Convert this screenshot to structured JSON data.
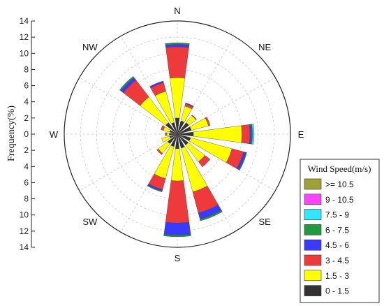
{
  "chart_data": {
    "type": "wind-rose",
    "title": "",
    "ylabel": "Frequency(%)",
    "r_max": 14,
    "r_ticks_up": [
      14,
      12,
      10,
      8,
      6,
      4,
      2,
      0
    ],
    "r_ticks_down": [
      2,
      4,
      6,
      8,
      10,
      12,
      14
    ],
    "direction_labels": [
      {
        "label": "N",
        "angle": 0
      },
      {
        "label": "NE",
        "angle": 45
      },
      {
        "label": "E",
        "angle": 90
      },
      {
        "label": "SE",
        "angle": 135
      },
      {
        "label": "S",
        "angle": 180
      },
      {
        "label": "SW",
        "angle": 225
      },
      {
        "label": "W",
        "angle": 270
      },
      {
        "label": "NW",
        "angle": 315
      }
    ],
    "legend": {
      "title": "Wind Speed(m/s)",
      "placement": "bottom-right",
      "bins": [
        {
          "label": ">= 10.5",
          "color": "#a0a03a"
        },
        {
          "label": "9 - 10.5",
          "color": "#ff44ff"
        },
        {
          "label": "7.5 - 9",
          "color": "#33e6ff"
        },
        {
          "label": "6 - 7.5",
          "color": "#1f9a3c"
        },
        {
          "label": "4.5 - 6",
          "color": "#3a3aff"
        },
        {
          "label": "3 - 4.5",
          "color": "#ee3a3a"
        },
        {
          "label": "1.5 - 3",
          "color": "#ffff00"
        },
        {
          "label": "0 - 1.5",
          "color": "#333333"
        }
      ]
    },
    "bin_order": [
      "0 - 1.5",
      "1.5 - 3",
      "3 - 4.5",
      "4.5 - 6",
      "6 - 7.5",
      "7.5 - 9",
      "9 - 10.5",
      ">= 10.5"
    ],
    "sectors": [
      {
        "direction": "N",
        "angle": 0,
        "values": [
          2.0,
          5.0,
          3.8,
          0.3,
          0.2,
          0,
          0,
          0
        ]
      },
      {
        "direction": "NNE",
        "angle": 22.5,
        "values": [
          1.7,
          1.9,
          0.3,
          0.1,
          0,
          0,
          0,
          0
        ]
      },
      {
        "direction": "NE",
        "angle": 45,
        "values": [
          1.8,
          1.1,
          0.1,
          0,
          0,
          0,
          0,
          0
        ]
      },
      {
        "direction": "ENE",
        "angle": 67.5,
        "values": [
          1.8,
          2.2,
          0.2,
          0,
          0,
          0,
          0,
          0
        ]
      },
      {
        "direction": "E",
        "angle": 90,
        "values": [
          2.0,
          6.0,
          1.0,
          0.2,
          0.1,
          0.2,
          0,
          0
        ]
      },
      {
        "direction": "ESE",
        "angle": 112.5,
        "values": [
          1.7,
          5.3,
          1.5,
          0.3,
          0.1,
          0,
          0,
          0
        ]
      },
      {
        "direction": "SE",
        "angle": 135,
        "values": [
          1.7,
          2.6,
          0.8,
          0,
          0,
          0,
          0,
          0
        ]
      },
      {
        "direction": "SSE",
        "angle": 157.5,
        "values": [
          1.8,
          5.6,
          2.7,
          0.8,
          0.2,
          0,
          0,
          0
        ]
      },
      {
        "direction": "S",
        "angle": 180,
        "values": [
          1.8,
          4.0,
          5.2,
          1.5,
          0.2,
          0,
          0,
          0
        ]
      },
      {
        "direction": "SSW",
        "angle": 202.5,
        "values": [
          1.6,
          4.1,
          1.4,
          0.2,
          0.1,
          0,
          0,
          0
        ]
      },
      {
        "direction": "SW",
        "angle": 225,
        "values": [
          1.5,
          1.5,
          0.2,
          0,
          0,
          0,
          0,
          0
        ]
      },
      {
        "direction": "WSW",
        "angle": 247.5,
        "values": [
          1.0,
          1.0,
          0,
          0,
          0,
          0,
          0,
          0
        ]
      },
      {
        "direction": "W",
        "angle": 270,
        "values": [
          1.0,
          0.3,
          0.2,
          0,
          0,
          0,
          0,
          0
        ]
      },
      {
        "direction": "WNW",
        "angle": 292.5,
        "values": [
          1.0,
          0.8,
          0.3,
          0,
          0,
          0,
          0,
          0
        ]
      },
      {
        "direction": "NW",
        "angle": 315,
        "values": [
          1.8,
          4.0,
          2.6,
          0.4,
          0.2,
          0,
          0,
          0
        ]
      },
      {
        "direction": "NNW",
        "angle": 337.5,
        "values": [
          1.5,
          4.0,
          1.1,
          0.2,
          0,
          0,
          0,
          0
        ]
      }
    ]
  }
}
